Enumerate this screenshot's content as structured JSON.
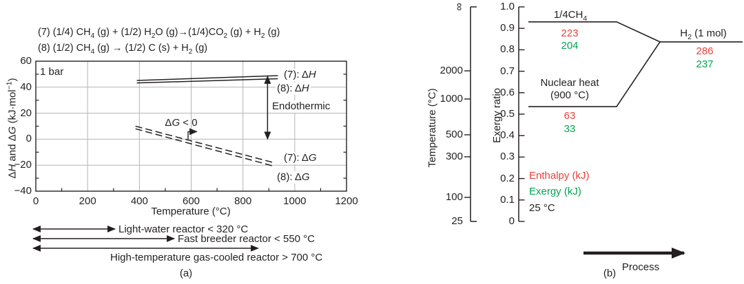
{
  "colors": {
    "ink": "#231f20",
    "grid": "#b3b3b3",
    "enthalpy_red": "#e8403a",
    "exergy_green": "#00a551"
  },
  "figure": {
    "panel_a": {
      "equations": [
        "(7) (1/4) CH~4~ (g) + (1/2) H~2~O (g)→(1/4)CO~2~ (g) + H~2~ (g)",
        "(8) (1/2) CH~4~ (g) → (1/2) C (s) + H~2~ (g)"
      ],
      "pressure_label": "1 bar",
      "xlabel": "Temperature (°C)",
      "ylabel": "Δ*H* and Δ*G* (kJ·mol^−1^)",
      "curve_labels": {
        "dH7": "(7): Δ*H*",
        "dH8": "(8): Δ*H*",
        "dG7": "(7): Δ*G*",
        "dG8": "(8): Δ*G*"
      },
      "annotation_labels": {
        "endothermic": "Endothermic",
        "dg_lt_0": "Δ*G* < 0"
      },
      "reactor_arrows": [
        {
          "label": "Light-water reactor < 320 °C",
          "end_temp": 306
        },
        {
          "label": "Fast breeder reactor < 550 °C",
          "end_temp": 535
        },
        {
          "label": "High-temperature gas-cooled reactor > 700 °C",
          "end_temp": 859
        }
      ],
      "caption": "(a)"
    },
    "panel_b": {
      "temp_axis_label": "Temperature (°C)",
      "exergy_axis_label": "Exergy ratio",
      "ch4_label": "1/4CH~4~",
      "nuclear_label_line1": "Nuclear heat",
      "nuclear_label_line2": "(900 °C)",
      "h2_label": "H~2~ (1 mol)",
      "legend_enthalpy": "Enthalpy (kJ)",
      "legend_exergy": "Exergy (kJ)",
      "reference_temp": "25 °C",
      "process_label": "Process",
      "caption": "(b)"
    }
  },
  "chart_data": [
    {
      "type": "line",
      "title": "",
      "xlabel": "Temperature (°C)",
      "ylabel": "ΔH and ΔG (kJ·mol⁻¹)",
      "condition": "1 bar",
      "xlim": [
        0,
        1200
      ],
      "ylim": [
        -40,
        60
      ],
      "xticks": [
        0,
        200,
        400,
        600,
        800,
        1000,
        1200
      ],
      "yticks": [
        60,
        40,
        20,
        0,
        -20,
        -40
      ],
      "minor_x_step": 100,
      "minor_y_step": 10,
      "grid": true,
      "series": [
        {
          "name": "(7): ΔH",
          "style": "solid",
          "points": [
            [
              390,
              45.2
            ],
            [
              935,
              48.9
            ]
          ]
        },
        {
          "name": "(8): ΔH",
          "style": "solid",
          "points": [
            [
              390,
              43.3
            ],
            [
              935,
              46.5
            ]
          ]
        },
        {
          "name": "(7): ΔG",
          "style": "dashed",
          "points": [
            [
              385,
              10.0
            ],
            [
              918,
              -18.0
            ]
          ]
        },
        {
          "name": "(8): ΔG",
          "style": "dashed",
          "points": [
            [
              385,
              8.0
            ],
            [
              918,
              -20.7
            ]
          ]
        }
      ],
      "annotations": [
        {
          "kind": "v_double_arrow",
          "x": 895,
          "y_from": 48.4,
          "y_to": 0,
          "label": "Endothermic"
        },
        {
          "kind": "elbow_arrow",
          "path": [
            [
              588,
              0
            ],
            [
              588,
              5.8
            ],
            [
              622,
              5.8
            ]
          ],
          "label": "ΔG < 0"
        }
      ]
    },
    {
      "type": "exergy_ladder",
      "temp_axis": {
        "label": "Temperature (°C)",
        "ticks": [
          "∞",
          "2000",
          "1000",
          "500",
          "300",
          "100",
          "25"
        ]
      },
      "exergy_axis": {
        "label": "Exergy ratio",
        "ticks": [
          "1.0",
          "0.9",
          "0.8",
          "0.7",
          "0.6",
          "0.5",
          "0.4",
          "0.3",
          "0.2",
          "0.1",
          "0"
        ],
        "range": [
          0,
          1
        ]
      },
      "levels": [
        {
          "name": "1/4CH4",
          "exergy_ratio": 0.93,
          "enthalpy_kJ": 223,
          "exergy_kJ": 204
        },
        {
          "name": "Nuclear heat (900 °C)",
          "exergy_ratio": 0.535,
          "enthalpy_kJ": 63,
          "exergy_kJ": 33
        },
        {
          "name": "H2 (1 mol)",
          "exergy_ratio": 0.837,
          "enthalpy_kJ": 286,
          "exergy_kJ": 237
        }
      ],
      "legend": [
        {
          "label": "Enthalpy (kJ)",
          "color_role": "enthalpy_red"
        },
        {
          "label": "Exergy (kJ)",
          "color_role": "exergy_green"
        }
      ],
      "reference_temp": "25 °C",
      "process_label": "Process"
    }
  ]
}
